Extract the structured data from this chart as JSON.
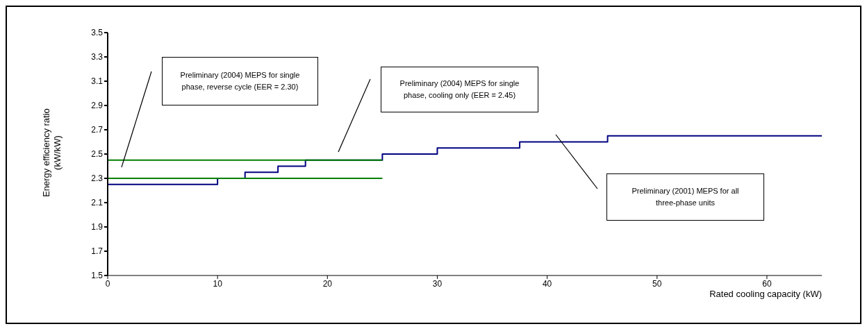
{
  "chart_data": {
    "type": "step",
    "xlabel": "Rated cooling capacity (kW)",
    "ylabel": "Energy efficiency ratio (kW/kW)",
    "xlim": [
      0,
      65
    ],
    "xticks": [
      0,
      10,
      20,
      30,
      40,
      50,
      60
    ],
    "ylim": [
      1.5,
      3.5
    ],
    "yticks": [
      1.5,
      1.7,
      1.9,
      2.1,
      2.3,
      2.5,
      2.7,
      2.9,
      3.1,
      3.3,
      3.5
    ],
    "grid": false,
    "legend": false,
    "marker": "none",
    "series": [
      {
        "color": "#000080",
        "x": [
          0,
          10,
          12.5,
          15.5,
          18,
          25,
          30,
          37.5,
          45.5,
          65
        ],
        "values": [
          2.25,
          2.3,
          2.35,
          2.4,
          2.45,
          2.5,
          2.55,
          2.6,
          2.65,
          2.65
        ]
      },
      {
        "type": "line",
        "color": "#008000",
        "x": [
          0,
          25
        ],
        "values": [
          2.3,
          2.3
        ]
      },
      {
        "type": "line",
        "color": "#008000",
        "x": [
          0,
          25
        ],
        "values": [
          2.45,
          2.45
        ]
      }
    ],
    "annotations": [
      "Preliminary (2004) MEPS for single phase, reverse cycle (EER = 2.30)",
      "Preliminary (2004) MEPS for single phase, cooling only (EER = 2.45)",
      "Preliminary (2001) MEPS for all three-phase units"
    ]
  }
}
